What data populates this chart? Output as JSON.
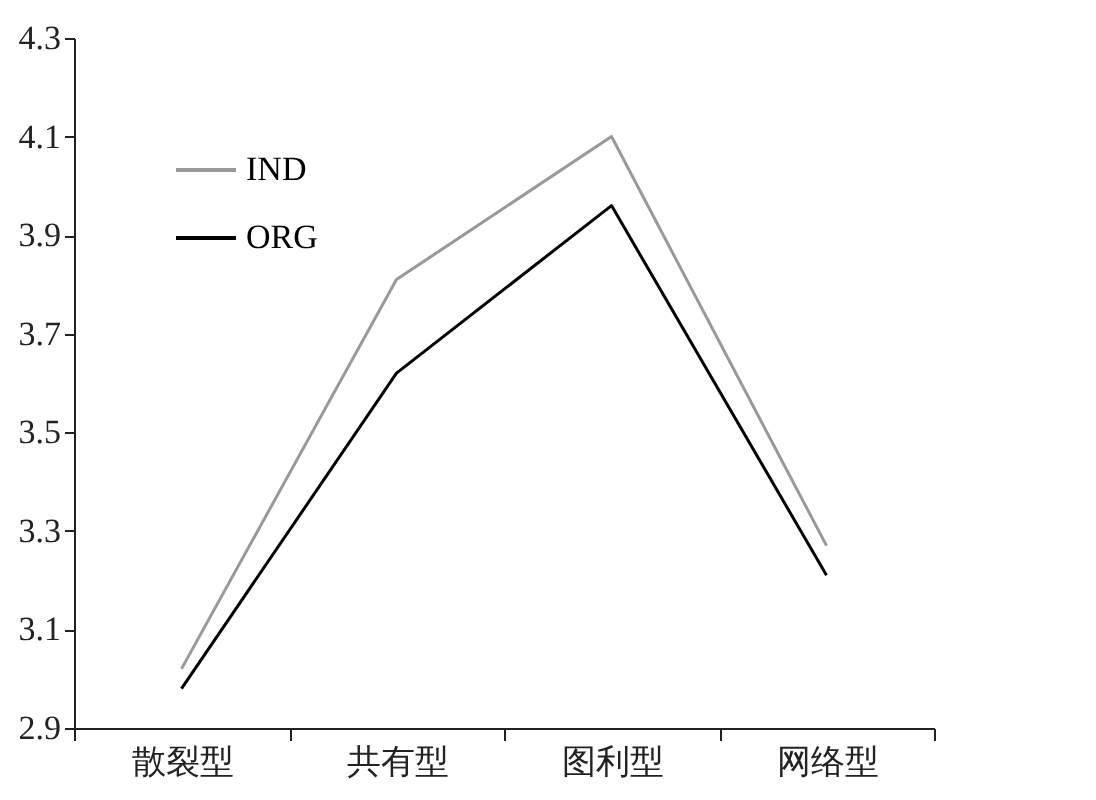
{
  "chart_data": {
    "type": "line",
    "categories": [
      "散裂型",
      "共有型",
      "图利型",
      "网络型"
    ],
    "series": [
      {
        "name": "IND",
        "color": "#999999",
        "values": [
          3.02,
          3.81,
          4.1,
          3.27
        ]
      },
      {
        "name": "ORG",
        "color": "#000000",
        "values": [
          2.98,
          3.62,
          3.96,
          3.21
        ]
      }
    ],
    "ylim": [
      2.9,
      4.3
    ],
    "yticks": [
      2.9,
      3.1,
      3.3,
      3.5,
      3.7,
      3.9,
      4.1,
      4.3
    ],
    "grid": false,
    "legend": "top left",
    "marker": "none",
    "line_style": "solid"
  }
}
